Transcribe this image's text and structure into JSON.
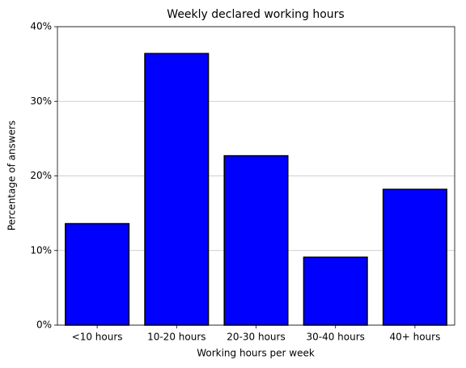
{
  "chart_data": {
    "type": "bar",
    "title": "Weekly declared working hours",
    "x_label": "Working hours per week",
    "y_label": "Percentage of answers",
    "categories": [
      "<10 hours",
      "10-20 hours",
      "20-30 hours",
      "30-40 hours",
      "40+ hours"
    ],
    "values": [
      13.6,
      36.4,
      22.7,
      9.1,
      18.2
    ],
    "color": "#0000ff",
    "edgecolor": "#000000",
    "ylim": [
      0,
      40
    ],
    "yticks": [
      {
        "value": 0,
        "label": "0%"
      },
      {
        "value": 10,
        "label": "10%"
      },
      {
        "value": 20,
        "label": "20%"
      },
      {
        "value": 30,
        "label": "30%"
      },
      {
        "value": 40,
        "label": "40%"
      }
    ],
    "grid": true
  }
}
